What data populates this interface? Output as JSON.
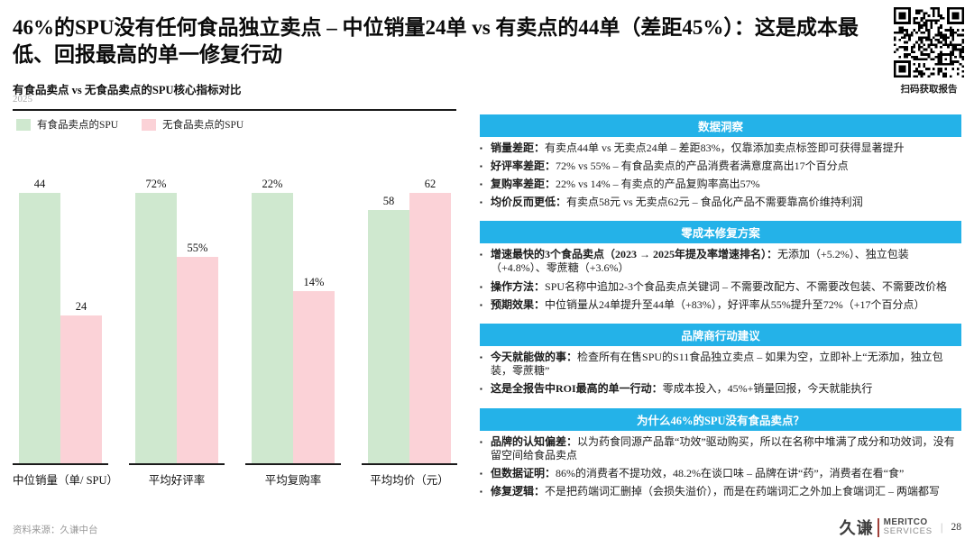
{
  "slide": {
    "title": "46%的SPU没有任何食品独立卖点 – 中位销量24单 vs 有卖点的44单（差距45%）：这是成本最低、回报最高的单一修复行动",
    "subtitle": "有食品卖点 vs 无食品卖点的SPU核心指标对比",
    "year": "2025",
    "qr_caption": "扫码获取报告",
    "source": "资料来源：久谦中台",
    "page_number": "28",
    "logo": {
      "cn": "久谦",
      "en_line1": "MERITCO",
      "en_line2": "SERVICES"
    }
  },
  "colors": {
    "accent_cyan": "#24b2e8",
    "bar_green": "#cfe8cf",
    "bar_pink": "#fbd2d7"
  },
  "chart_data": {
    "type": "bar",
    "title": "有食品卖点 vs 无食品卖点的SPU核心指标对比",
    "subtitle_year": "2025",
    "categories": [
      "中位销量（单/ SPU）",
      "平均好评率",
      "平均复购率",
      "平均均价（元）"
    ],
    "series": [
      {
        "name": "有食品卖点的SPU",
        "color": "#cfe8cf",
        "values": [
          44,
          72,
          22,
          58
        ],
        "labels": [
          "44",
          "72%",
          "22%",
          "58"
        ]
      },
      {
        "name": "无食品卖点的SPU",
        "color": "#fbd2d7",
        "values": [
          24,
          55,
          14,
          62
        ],
        "labels": [
          "24",
          "55%",
          "14%",
          "62"
        ]
      }
    ],
    "legend_position": "top-left",
    "grid": false,
    "scaling_note": "each category group normalized independently; tallest bar in group = full plot height"
  },
  "panels": [
    {
      "header": "数据洞察",
      "bullets": [
        {
          "lead": "销量差距：",
          "text": "有卖点44单 vs 无卖点24单 – 差距83%，仅靠添加卖点标签即可获得显著提升"
        },
        {
          "lead": "好评率差距：",
          "text": "72% vs 55% – 有食品卖点的产品消费者满意度高出17个百分点"
        },
        {
          "lead": "复购率差距：",
          "text": "22% vs 14% – 有卖点的产品复购率高出57%"
        },
        {
          "lead": "均价反而更低：",
          "text": "有卖点58元 vs 无卖点62元 – 食品化产品不需要靠高价维持利润"
        }
      ]
    },
    {
      "header": "零成本修复方案",
      "bullets": [
        {
          "lead": "增速最快的3个食品卖点（2023 → 2025年提及率增速排名）：",
          "text": "无添加（+5.2%）、独立包装（+4.8%）、零蔗糖（+3.6%）"
        },
        {
          "lead": "操作方法：",
          "text": "SPU名称中追加2-3个食品卖点关键词 – 不需要改配方、不需要改包装、不需要改价格"
        },
        {
          "lead": "预期效果：",
          "text": "中位销量从24单提升至44单（+83%），好评率从55%提升至72%（+17个百分点）"
        }
      ]
    },
    {
      "header": "品牌商行动建议",
      "bullets": [
        {
          "lead": "今天就能做的事：",
          "text": "检查所有在售SPU的S11食品独立卖点 – 如果为空，立即补上“无添加，独立包装，零蔗糖”"
        },
        {
          "lead": "这是全报告中ROI最高的单一行动：",
          "text": "零成本投入，45%+销量回报，今天就能执行"
        }
      ]
    },
    {
      "header": "为什么46%的SPU没有食品卖点？",
      "bullets": [
        {
          "lead": "品牌的认知偏差：",
          "text": "以为药食同源产品靠“功效”驱动购买，所以在名称中堆满了成分和功效词，没有留空间给食品卖点"
        },
        {
          "lead": "但数据证明：",
          "text": "86%的消费者不提功效，48.2%在谈口味 – 品牌在讲“药”，消费者在看“食”"
        },
        {
          "lead": "修复逻辑：",
          "text": "不是把药端词汇删掉（会损失溢价），而是在药端词汇之外加上食端词汇 – 两端都写"
        }
      ]
    }
  ]
}
